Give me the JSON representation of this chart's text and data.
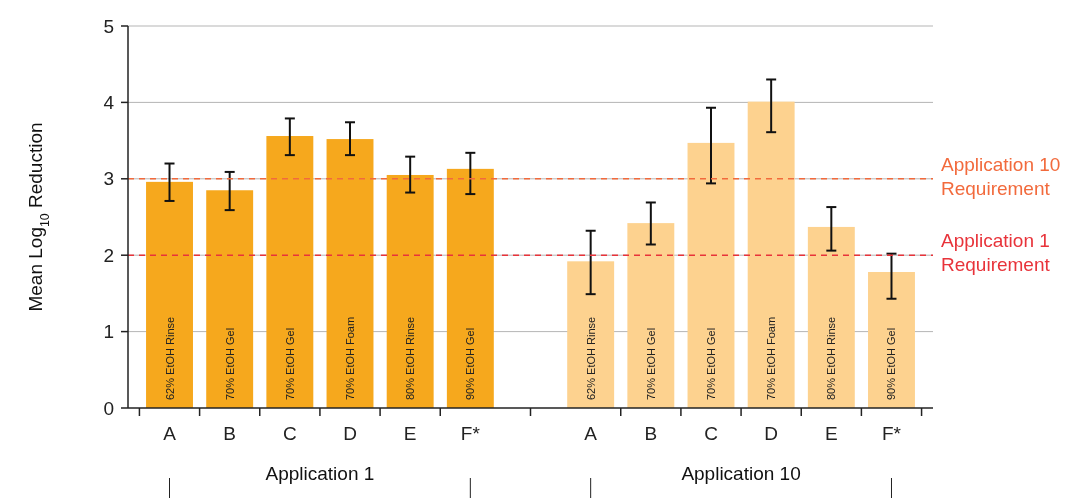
{
  "chart_data": {
    "type": "bar",
    "ylabel": "Mean Log$_{10}$ Reduction",
    "categories": [
      "A",
      "B",
      "C",
      "D",
      "E",
      "F*",
      "A",
      "B",
      "C",
      "D",
      "E",
      "F*"
    ],
    "values": [
      2.96,
      2.85,
      3.56,
      3.52,
      3.05,
      3.13,
      1.92,
      2.42,
      3.47,
      4.01,
      2.37,
      1.78
    ],
    "colors": [
      "#f6a81d",
      "#f6a81d",
      "#f6a81d",
      "#f6a81d",
      "#f6a81d",
      "#f6a81d",
      "#fdd28f",
      "#fdd28f",
      "#fdd28f",
      "#fdd28f",
      "#fdd28f",
      "#fdd28f"
    ],
    "errors": [
      [
        2.71,
        3.2
      ],
      [
        2.59,
        3.09
      ],
      [
        3.31,
        3.79
      ],
      [
        3.31,
        3.74
      ],
      [
        2.82,
        3.29
      ],
      [
        2.8,
        3.34
      ],
      [
        1.49,
        2.32
      ],
      [
        2.14,
        2.69
      ],
      [
        2.94,
        3.93
      ],
      [
        3.61,
        4.3
      ],
      [
        2.06,
        2.63
      ],
      [
        1.43,
        2.02
      ]
    ],
    "ylim": [
      0,
      5
    ],
    "yticks": [
      0,
      1,
      2,
      3,
      4,
      5
    ],
    "grid": "y",
    "ref_lines": [
      {
        "axis": "y",
        "value": 2,
        "label": "Application 1 Requirement",
        "color": "#e8333a",
        "line_style": "dashed"
      },
      {
        "axis": "y",
        "value": 3,
        "label": "Application 10 Requirement",
        "color": "#f26a3c",
        "line_style": "dashed"
      }
    ],
    "annotations": [
      "Application 1",
      "Application 10",
      "62% EtOH Rinse",
      "70% EtOH Gel",
      "70% EtOH Gel",
      "70% EtOH Foam",
      "80% EtOH Rinse",
      "90% EtOH Gel",
      "62% EtOH Rinse",
      "70% EtOH Gel",
      "70% EtOH Gel",
      "70% EtOH Foam",
      "80% EtOH Rinse",
      "90% EtOH Gel"
    ]
  }
}
